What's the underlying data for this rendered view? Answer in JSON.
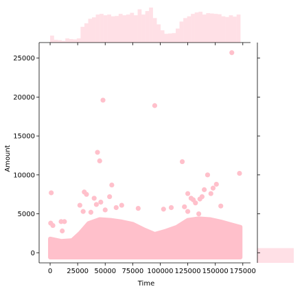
{
  "chart_data": {
    "type": "scatter",
    "title": "",
    "xlabel": "Time",
    "ylabel": "Amount",
    "xlim": [
      -10000,
      182000
    ],
    "ylim": [
      -1300,
      27000
    ],
    "x_ticks": [
      0,
      25000,
      50000,
      75000,
      100000,
      125000,
      150000,
      175000
    ],
    "x_tick_labels": [
      "0",
      "25000",
      "50000",
      "75000",
      "100000",
      "125000",
      "150000",
      "175000"
    ],
    "y_ticks": [
      0,
      5000,
      10000,
      15000,
      20000,
      25000
    ],
    "y_tick_labels": [
      "0",
      "5000",
      "10000",
      "15000",
      "20000",
      "25000"
    ],
    "color": "#ffc0cb",
    "marginal_color": "#ffe0e6",
    "grid": false,
    "points": [
      {
        "x": 1000,
        "y": 7700
      },
      {
        "x": 500,
        "y": 3800
      },
      {
        "x": 2500,
        "y": 3500
      },
      {
        "x": 10000,
        "y": 4000
      },
      {
        "x": 13000,
        "y": 4000
      },
      {
        "x": 11000,
        "y": 2800
      },
      {
        "x": 27000,
        "y": 6100
      },
      {
        "x": 31000,
        "y": 7800
      },
      {
        "x": 33000,
        "y": 7500
      },
      {
        "x": 30000,
        "y": 5300
      },
      {
        "x": 37000,
        "y": 5200
      },
      {
        "x": 40000,
        "y": 7000
      },
      {
        "x": 43000,
        "y": 12900
      },
      {
        "x": 45000,
        "y": 11800
      },
      {
        "x": 48000,
        "y": 19600
      },
      {
        "x": 46000,
        "y": 6500
      },
      {
        "x": 56000,
        "y": 8700
      },
      {
        "x": 54000,
        "y": 7200
      },
      {
        "x": 60000,
        "y": 5800
      },
      {
        "x": 65000,
        "y": 6100
      },
      {
        "x": 80000,
        "y": 5700
      },
      {
        "x": 95000,
        "y": 18900
      },
      {
        "x": 103000,
        "y": 5600
      },
      {
        "x": 110000,
        "y": 5800
      },
      {
        "x": 120000,
        "y": 11700
      },
      {
        "x": 122000,
        "y": 5900
      },
      {
        "x": 125000,
        "y": 7600
      },
      {
        "x": 128000,
        "y": 7000
      },
      {
        "x": 130000,
        "y": 6800
      },
      {
        "x": 132000,
        "y": 6400
      },
      {
        "x": 136000,
        "y": 6900
      },
      {
        "x": 138000,
        "y": 7200
      },
      {
        "x": 140000,
        "y": 8100
      },
      {
        "x": 143000,
        "y": 10000
      },
      {
        "x": 146000,
        "y": 7600
      },
      {
        "x": 148000,
        "y": 8300
      },
      {
        "x": 151000,
        "y": 8800
      },
      {
        "x": 165000,
        "y": 25700
      },
      {
        "x": 172000,
        "y": 10200
      },
      {
        "x": 125000,
        "y": 5300
      },
      {
        "x": 135000,
        "y": 5000
      },
      {
        "x": 155000,
        "y": 6000
      },
      {
        "x": 50000,
        "y": 5500
      },
      {
        "x": 42000,
        "y": 6200
      }
    ],
    "dense_band": {
      "x_range": [
        0,
        172800
      ],
      "levels": [
        {
          "x": 0,
          "y": 1800
        },
        {
          "x": 10000,
          "y": 1500
        },
        {
          "x": 20000,
          "y": 1600
        },
        {
          "x": 27000,
          "y": 2500
        },
        {
          "x": 35000,
          "y": 3800
        },
        {
          "x": 45000,
          "y": 4300
        },
        {
          "x": 55000,
          "y": 4200
        },
        {
          "x": 65000,
          "y": 4000
        },
        {
          "x": 75000,
          "y": 3700
        },
        {
          "x": 85000,
          "y": 3000
        },
        {
          "x": 95000,
          "y": 2400
        },
        {
          "x": 105000,
          "y": 2800
        },
        {
          "x": 115000,
          "y": 3300
        },
        {
          "x": 125000,
          "y": 4200
        },
        {
          "x": 135000,
          "y": 4400
        },
        {
          "x": 145000,
          "y": 4300
        },
        {
          "x": 155000,
          "y": 4000
        },
        {
          "x": 165000,
          "y": 3600
        },
        {
          "x": 172800,
          "y": 3300
        }
      ]
    },
    "marginal_x_hist": [
      0.2,
      0.08,
      0.07,
      0.05,
      0.12,
      0.1,
      0.09,
      0.12,
      0.45,
      0.55,
      0.68,
      0.72,
      0.8,
      0.82,
      0.78,
      0.8,
      0.75,
      0.76,
      0.82,
      0.78,
      0.8,
      0.85,
      0.78,
      0.95,
      0.8,
      0.9,
      1.0,
      0.7,
      0.52,
      0.35,
      0.25,
      0.26,
      0.27,
      0.4,
      0.6,
      0.7,
      0.75,
      0.82,
      0.86,
      0.88,
      0.8,
      0.84,
      0.83,
      0.82,
      0.81,
      0.75,
      0.73,
      0.78,
      0.74,
      0.8
    ],
    "marginal_y_hist_bin": {
      "y_from": -1300,
      "y_to": 600,
      "extent": 1.0
    }
  }
}
